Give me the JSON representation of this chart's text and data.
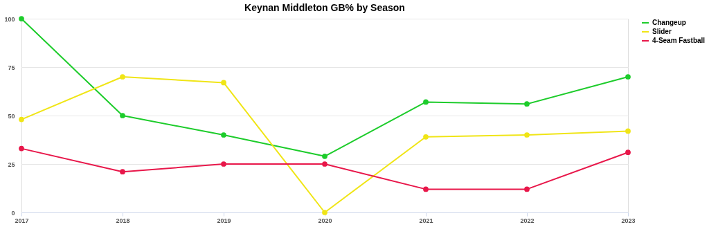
{
  "chart_data": {
    "type": "line",
    "title": "Keynan Middleton GB% by Season",
    "categories": [
      "2017",
      "2018",
      "2019",
      "2020",
      "2021",
      "2022",
      "2023"
    ],
    "series": [
      {
        "name": "Changeup",
        "color": "#1dcc2b",
        "values": [
          100,
          50,
          40,
          29,
          57,
          56,
          70
        ]
      },
      {
        "name": "Slider",
        "color": "#f0e516",
        "values": [
          48,
          70,
          67,
          0,
          39,
          40,
          42
        ]
      },
      {
        "name": "4-Seam Fastball",
        "color": "#e8174a",
        "values": [
          33,
          21,
          25,
          25,
          12,
          12,
          31
        ]
      }
    ],
    "ylim": [
      0,
      100
    ],
    "yticks": [
      0,
      25,
      50,
      75,
      100
    ],
    "grid": "y",
    "legend": "right",
    "marker": "circle",
    "line_style": "solid"
  }
}
